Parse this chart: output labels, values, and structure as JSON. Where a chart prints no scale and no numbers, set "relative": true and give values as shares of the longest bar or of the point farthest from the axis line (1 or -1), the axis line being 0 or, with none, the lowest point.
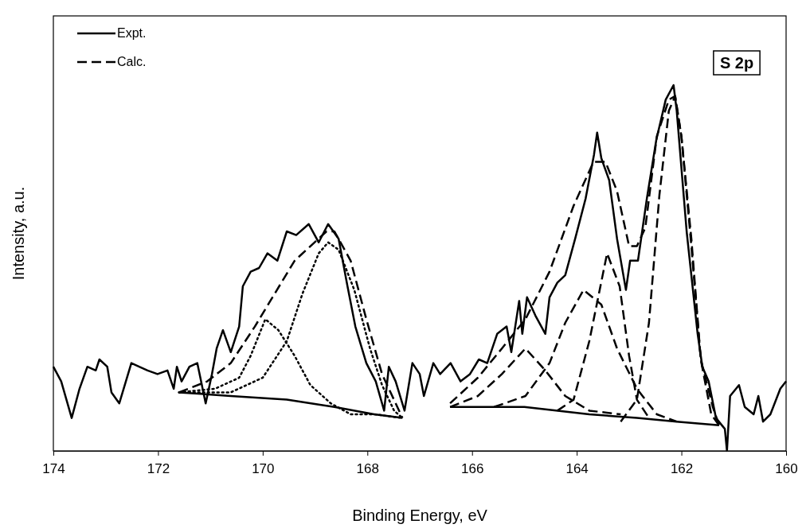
{
  "chart_data": {
    "type": "line",
    "relative": true,
    "xlabel": "Binding Energy, eV",
    "ylabel": "Intensity, a.u.",
    "xlim": [
      174,
      160
    ],
    "xticks": [
      174,
      172,
      170,
      168,
      166,
      164,
      162,
      160
    ],
    "tick_labels": "x",
    "grid": false,
    "legend": "top left",
    "marker": "none",
    "annotations": [
      "S 2p"
    ],
    "series": [
      {
        "name": "Expt.",
        "color": "#000000",
        "line_style": "solid",
        "x": [
          174.0,
          173.85,
          173.65,
          173.5,
          173.35,
          173.19,
          173.12,
          172.97,
          172.89,
          172.74,
          172.51,
          172.36,
          172.2,
          172.01,
          171.82,
          171.7,
          171.64,
          171.55,
          171.4,
          171.25,
          171.09,
          170.97,
          170.88,
          170.76,
          170.61,
          170.45,
          170.38,
          170.23,
          170.07,
          169.91,
          169.72,
          169.54,
          169.36,
          169.12,
          168.93,
          168.75,
          168.55,
          168.38,
          168.23,
          168.02,
          167.84,
          167.68,
          167.59,
          167.46,
          167.29,
          167.14,
          167.0,
          166.92,
          166.74,
          166.61,
          166.41,
          166.22,
          166.04,
          165.87,
          165.71,
          165.52,
          165.34,
          165.25,
          165.1,
          165.04,
          164.95,
          164.79,
          164.6,
          164.52,
          164.37,
          164.22,
          164.03,
          163.83,
          163.67,
          163.61,
          163.53,
          163.38,
          163.23,
          163.06,
          162.98,
          162.83,
          162.66,
          162.48,
          162.3,
          162.15,
          162.09,
          161.9,
          161.69,
          161.6,
          161.48,
          161.34,
          161.17,
          161.13,
          161.07,
          160.9,
          160.79,
          160.62,
          160.53,
          160.44,
          160.3,
          160.11,
          160.0
        ],
        "values": [
          0.23,
          0.19,
          0.09,
          0.17,
          0.23,
          0.22,
          0.25,
          0.23,
          0.16,
          0.13,
          0.24,
          0.23,
          0.22,
          0.21,
          0.22,
          0.17,
          0.23,
          0.19,
          0.23,
          0.24,
          0.13,
          0.21,
          0.28,
          0.33,
          0.27,
          0.34,
          0.45,
          0.49,
          0.5,
          0.54,
          0.52,
          0.6,
          0.59,
          0.62,
          0.57,
          0.62,
          0.58,
          0.45,
          0.34,
          0.24,
          0.19,
          0.11,
          0.23,
          0.19,
          0.11,
          0.24,
          0.21,
          0.15,
          0.24,
          0.21,
          0.24,
          0.19,
          0.21,
          0.25,
          0.24,
          0.32,
          0.34,
          0.27,
          0.41,
          0.32,
          0.42,
          0.37,
          0.32,
          0.42,
          0.46,
          0.48,
          0.58,
          0.69,
          0.81,
          0.87,
          0.8,
          0.74,
          0.58,
          0.44,
          0.52,
          0.52,
          0.69,
          0.85,
          0.96,
          1.0,
          0.93,
          0.6,
          0.32,
          0.23,
          0.19,
          0.09,
          0.06,
          0.0,
          0.15,
          0.18,
          0.12,
          0.1,
          0.15,
          0.08,
          0.1,
          0.17,
          0.19
        ]
      },
      {
        "name": "Calc.",
        "color": "#000000",
        "line_style": "dashed",
        "x": [
          171.6,
          171.06,
          170.61,
          170.15,
          169.77,
          169.39,
          169.01,
          168.78,
          168.63,
          168.32,
          168.02,
          167.72,
          167.33,
          null,
          166.42,
          165.89,
          165.43,
          164.98,
          164.52,
          164.06,
          163.68,
          163.45,
          163.23,
          163.0,
          162.85,
          162.69,
          162.47,
          162.24,
          162.12,
          162.0,
          161.81,
          161.63,
          161.4,
          161.28
        ],
        "values": [
          0.16,
          0.19,
          0.24,
          0.34,
          0.43,
          0.52,
          0.57,
          0.6,
          0.6,
          0.52,
          0.36,
          0.21,
          0.09,
          null,
          0.13,
          0.2,
          0.28,
          0.36,
          0.49,
          0.67,
          0.79,
          0.79,
          0.71,
          0.56,
          0.56,
          0.61,
          0.86,
          0.96,
          0.97,
          0.86,
          0.58,
          0.25,
          0.12,
          0.07
        ]
      },
      {
        "color": "#000000",
        "line_style": "solid",
        "x": [
          171.6,
          170.61,
          169.54,
          168.63,
          167.87,
          167.33
        ],
        "values": [
          0.16,
          0.15,
          0.14,
          0.12,
          0.1,
          0.09
        ]
      },
      {
        "color": "#000000",
        "line_style": "solid",
        "x": [
          166.42,
          165.0,
          163.76,
          162.85,
          162.09,
          161.28
        ],
        "values": [
          0.12,
          0.12,
          0.1,
          0.09,
          0.08,
          0.07
        ]
      },
      {
        "color": "#000000",
        "line_style": "dotted",
        "x": [
          171.6,
          170.91,
          170.45,
          170.23,
          169.95,
          169.7,
          169.39,
          169.09,
          168.7,
          168.32,
          167.87,
          167.33
        ],
        "values": [
          0.16,
          0.17,
          0.2,
          0.26,
          0.36,
          0.33,
          0.26,
          0.18,
          0.13,
          0.1,
          0.1,
          0.09
        ]
      },
      {
        "color": "#000000",
        "line_style": "dotted",
        "x": [
          171.6,
          170.61,
          170.0,
          169.54,
          169.24,
          168.93,
          168.75,
          168.55,
          168.25,
          167.95,
          167.72,
          167.49,
          167.33
        ],
        "values": [
          0.16,
          0.16,
          0.2,
          0.3,
          0.43,
          0.54,
          0.57,
          0.55,
          0.44,
          0.28,
          0.18,
          0.11,
          0.09
        ]
      },
      {
        "color": "#000000",
        "line_style": "dashed",
        "x": [
          166.42,
          165.89,
          165.43,
          164.98,
          164.6,
          164.22,
          163.76,
          163.16
        ],
        "values": [
          0.12,
          0.15,
          0.21,
          0.28,
          0.22,
          0.15,
          0.11,
          0.1
        ]
      },
      {
        "color": "#000000",
        "line_style": "dashed",
        "x": [
          165.58,
          164.98,
          164.52,
          164.22,
          163.87,
          163.53,
          163.23,
          162.85,
          162.47,
          162.09
        ],
        "values": [
          0.12,
          0.15,
          0.24,
          0.35,
          0.44,
          0.4,
          0.28,
          0.17,
          0.1,
          0.08
        ]
      },
      {
        "color": "#000000",
        "line_style": "dashed",
        "x": [
          164.37,
          164.06,
          163.76,
          163.42,
          163.18,
          163.0,
          162.85,
          162.62
        ],
        "values": [
          0.11,
          0.14,
          0.3,
          0.54,
          0.45,
          0.26,
          0.14,
          0.09
        ]
      },
      {
        "color": "#000000",
        "line_style": "dashed",
        "x": [
          163.16,
          162.85,
          162.62,
          162.42,
          162.24,
          162.12,
          162.0,
          161.81,
          161.63,
          161.43,
          161.28
        ],
        "values": [
          0.08,
          0.14,
          0.35,
          0.7,
          0.93,
          0.97,
          0.86,
          0.56,
          0.25,
          0.1,
          0.07
        ]
      }
    ]
  }
}
